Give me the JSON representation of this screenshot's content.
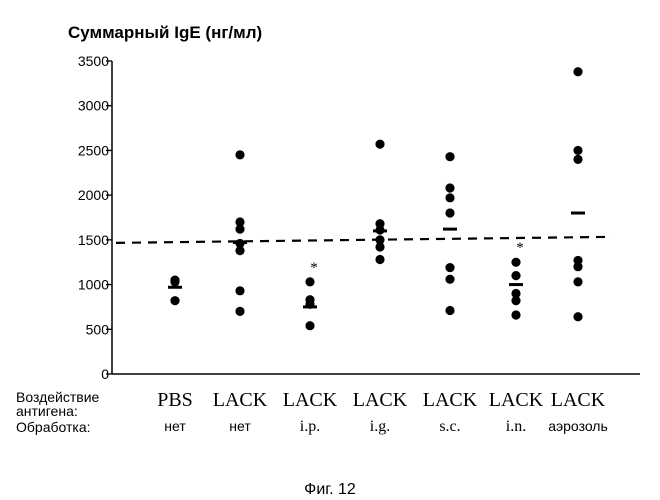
{
  "chart_data": {
    "type": "scatter",
    "title": "Суммарный IgE (нг/мл)",
    "ylim": [
      0,
      3500
    ],
    "yticks": [
      0,
      500,
      1000,
      1500,
      2000,
      2500,
      3000,
      3500
    ],
    "reference_line": 1500,
    "row_labels": {
      "antigen": "Воздействие антигена:",
      "antigen_line1": "Воздействие",
      "antigen_line2": "антигена:",
      "treatment": "Обработка:"
    },
    "groups": [
      {
        "antigen": "PBS",
        "treatment": "нет",
        "values": [
          1050,
          1030,
          820
        ],
        "mean": 970,
        "star": false
      },
      {
        "antigen": "LACK",
        "treatment": "нет",
        "values": [
          2450,
          1700,
          1620,
          1460,
          1380,
          930,
          700
        ],
        "mean": 1470,
        "star": false
      },
      {
        "antigen": "LACK",
        "treatment": "i.p.",
        "values": [
          1030,
          830,
          780,
          540
        ],
        "mean": 750,
        "star": true
      },
      {
        "antigen": "LACK",
        "treatment": "i.g.",
        "values": [
          2570,
          1680,
          1610,
          1500,
          1420,
          1280
        ],
        "mean": 1600,
        "star": false
      },
      {
        "antigen": "LACK",
        "treatment": "s.c.",
        "values": [
          2430,
          2080,
          1970,
          1800,
          1190,
          1060,
          710
        ],
        "mean": 1620,
        "star": false
      },
      {
        "antigen": "LACK",
        "treatment": "i.n.",
        "values": [
          1250,
          1100,
          900,
          820,
          660
        ],
        "mean": 1000,
        "star": true
      },
      {
        "antigen": "LACK",
        "treatment": "аэрозоль",
        "values": [
          3380,
          2500,
          2400,
          1270,
          1200,
          1030,
          640
        ],
        "mean": 1800,
        "star": false
      }
    ]
  },
  "caption": "Фиг. 12",
  "star_symbol": "*"
}
